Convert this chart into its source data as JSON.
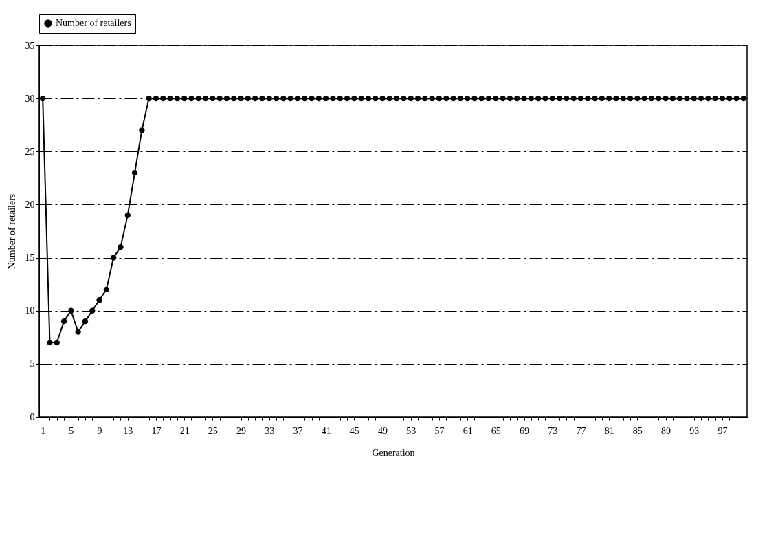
{
  "chart_data": {
    "type": "line",
    "xlabel": "Generation",
    "ylabel": "Number of retailers",
    "categories": [
      "1",
      null,
      null,
      null,
      "5",
      null,
      null,
      null,
      "9",
      null,
      null,
      null,
      "13",
      null,
      null,
      null,
      "17",
      null,
      null,
      null,
      "21",
      null,
      null,
      null,
      "25",
      null,
      null,
      null,
      "29",
      null,
      null,
      null,
      "33",
      null,
      null,
      null,
      "37",
      null,
      null,
      null,
      "41",
      null,
      null,
      null,
      "45",
      null,
      null,
      null,
      "49",
      null,
      null,
      null,
      "53",
      null,
      null,
      null,
      "57",
      null,
      null,
      null,
      "61",
      null,
      null,
      null,
      "65",
      null,
      null,
      null,
      "69",
      null,
      null,
      null,
      "73",
      null,
      null,
      null,
      "77",
      null,
      null,
      null,
      "81",
      null,
      null,
      null,
      "85",
      null,
      null,
      null,
      "89",
      null,
      null,
      null,
      "93",
      null,
      null,
      null,
      "97",
      null,
      null,
      null
    ],
    "series": [
      {
        "name": "Number of retailers",
        "color": "#000000",
        "values": [
          30,
          7,
          7,
          9,
          10,
          8,
          9,
          10,
          11,
          12,
          15,
          16,
          19,
          23,
          27,
          30,
          30,
          30,
          30,
          30,
          30,
          30,
          30,
          30,
          30,
          30,
          30,
          30,
          30,
          30,
          30,
          30,
          30,
          30,
          30,
          30,
          30,
          30,
          30,
          30,
          30,
          30,
          30,
          30,
          30,
          30,
          30,
          30,
          30,
          30,
          30,
          30,
          30,
          30,
          30,
          30,
          30,
          30,
          30,
          30,
          30,
          30,
          30,
          30,
          30,
          30,
          30,
          30,
          30,
          30,
          30,
          30,
          30,
          30,
          30,
          30,
          30,
          30,
          30,
          30,
          30,
          30,
          30,
          30,
          30,
          30,
          30,
          30,
          30,
          30,
          30,
          30,
          30,
          30,
          30,
          30,
          30,
          30,
          30,
          30
        ]
      }
    ],
    "ylim": [
      0,
      35
    ],
    "yticks": [
      0,
      5,
      10,
      15,
      20,
      25,
      30,
      35
    ],
    "grid": "y",
    "legend": "top",
    "marker": "circle",
    "line_style": "solid"
  }
}
